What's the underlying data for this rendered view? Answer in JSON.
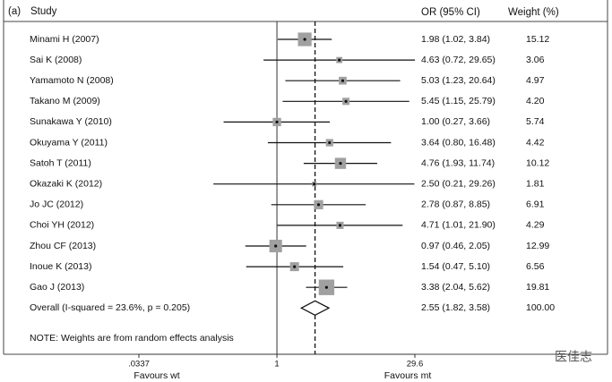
{
  "chart_data": {
    "type": "forest",
    "panel": "(a)",
    "study_header": "Study",
    "or_header": "OR (95% CI)",
    "weight_header": "Weight (%)",
    "categories": [
      "Minami H (2007)",
      "Sai K (2008)",
      "Yamamoto N (2008)",
      "Takano M (2009)",
      "Sunakawa Y (2010)",
      "Okuyama Y (2011)",
      "Satoh T (2011)",
      "Okazaki K (2012)",
      "Jo JC (2012)",
      "Choi YH (2012)",
      "Zhou CF (2013)",
      "Inoue K (2013)",
      "Gao J (2013)"
    ],
    "values": [
      1.98,
      4.63,
      5.03,
      5.45,
      1.0,
      3.64,
      4.76,
      2.5,
      2.78,
      4.71,
      0.97,
      1.54,
      3.38
    ],
    "lower": [
      1.02,
      0.72,
      1.23,
      1.15,
      0.27,
      0.8,
      1.93,
      0.21,
      0.87,
      1.01,
      0.46,
      0.47,
      2.04
    ],
    "upper": [
      3.84,
      29.65,
      20.64,
      25.79,
      3.66,
      16.48,
      11.74,
      29.26,
      8.85,
      21.9,
      2.05,
      5.1,
      5.62
    ],
    "value_labels": [
      "1.98 (1.02, 3.84)",
      "4.63 (0.72, 29.65)",
      "5.03 (1.23, 20.64)",
      "5.45 (1.15, 25.79)",
      "1.00 (0.27, 3.66)",
      "3.64 (0.80, 16.48)",
      "4.76 (1.93, 11.74)",
      "2.50 (0.21, 29.26)",
      "2.78 (0.87, 8.85)",
      "4.71 (1.01, 21.90)",
      "0.97 (0.46, 2.05)",
      "1.54 (0.47, 5.10)",
      "3.38 (2.04, 5.62)"
    ],
    "weights": [
      15.12,
      3.06,
      4.97,
      4.2,
      5.74,
      4.42,
      10.12,
      1.81,
      6.91,
      4.29,
      12.99,
      6.56,
      19.81
    ],
    "weight_labels": [
      "15.12",
      "3.06",
      "4.97",
      "4.20",
      "5.74",
      "4.42",
      "10.12",
      "1.81",
      "6.91",
      "4.29",
      "12.99",
      "6.56",
      "19.81"
    ],
    "overall": {
      "name": "Overall  (I-squared = 23.6%, p = 0.205)",
      "value": 2.55,
      "lower": 1.82,
      "upper": 3.58,
      "value_label": "2.55 (1.82, 3.58)",
      "weight": 100,
      "weight_label": "100.00"
    },
    "note": "NOTE: Weights are from random effects analysis",
    "log_x": true,
    "xlim": [
      0.0337,
      29.6
    ],
    "xticks": [
      {
        "value": 0.0337,
        "label": ".0337"
      },
      1,
      29.6
    ],
    "left_label": "Favours wt",
    "right_label": "Favours mt",
    "color": "#a0a0a0",
    "watermark": "医佳志"
  }
}
